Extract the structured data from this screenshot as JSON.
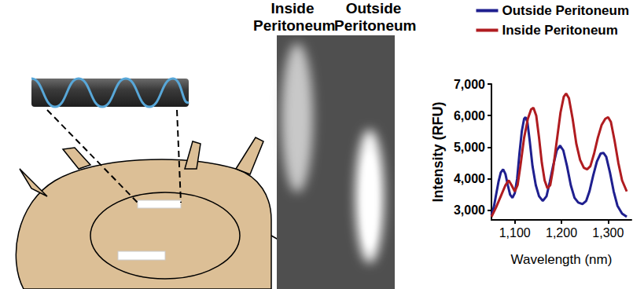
{
  "image_labels": [
    "Inside Peritoneum",
    "Outside Peritoneum"
  ],
  "chart_data": {
    "type": "line",
    "x_label": "Wavelength (nm)",
    "y_label": "Intensity (RFU)",
    "xlim": [
      1050,
      1350
    ],
    "xticks": [
      1100,
      1200,
      1300
    ],
    "ylim": [
      2700,
      7000
    ],
    "yticks": [
      3000,
      4000,
      5000,
      6000,
      7000
    ],
    "grid": false,
    "legend": "top-right",
    "series": [
      {
        "name": "Outside Peritoneum",
        "color": "#1f1f8f",
        "x": [
          1050,
          1055,
          1060,
          1065,
          1070,
          1075,
          1080,
          1085,
          1090,
          1095,
          1100,
          1105,
          1110,
          1115,
          1120,
          1123,
          1127,
          1132,
          1138,
          1145,
          1152,
          1160,
          1168,
          1175,
          1182,
          1190,
          1197,
          1204,
          1212,
          1220,
          1228,
          1236,
          1245,
          1253,
          1260,
          1268,
          1276,
          1284,
          1290,
          1296,
          1304,
          1312,
          1320,
          1330,
          1340
        ],
        "values": [
          2850,
          3100,
          3500,
          3900,
          4200,
          4300,
          4150,
          3800,
          3500,
          3400,
          3550,
          4000,
          4800,
          5500,
          5900,
          5950,
          5800,
          5200,
          4400,
          3800,
          3450,
          3300,
          3450,
          3900,
          4400,
          4900,
          5050,
          4900,
          4400,
          3800,
          3400,
          3250,
          3200,
          3300,
          3600,
          4100,
          4550,
          4800,
          4820,
          4700,
          4200,
          3600,
          3150,
          2900,
          2800
        ]
      },
      {
        "name": "Inside Peritoneum",
        "color": "#b01c20",
        "x": [
          1050,
          1060,
          1070,
          1080,
          1087,
          1093,
          1100,
          1106,
          1112,
          1120,
          1128,
          1135,
          1140,
          1146,
          1152,
          1158,
          1164,
          1170,
          1176,
          1182,
          1190,
          1198,
          1205,
          1210,
          1216,
          1224,
          1232,
          1240,
          1248,
          1255,
          1262,
          1270,
          1278,
          1286,
          1294,
          1300,
          1306,
          1314,
          1322,
          1330,
          1340
        ],
        "values": [
          2800,
          3100,
          3450,
          3800,
          3950,
          3800,
          3600,
          3800,
          4400,
          5300,
          5900,
          6200,
          6250,
          6000,
          5300,
          4500,
          3950,
          3700,
          3800,
          4300,
          5200,
          6100,
          6600,
          6700,
          6550,
          5900,
          5100,
          4600,
          4350,
          4300,
          4400,
          4800,
          5300,
          5700,
          5900,
          5950,
          5800,
          5200,
          4500,
          3950,
          3600
        ]
      }
    ]
  }
}
